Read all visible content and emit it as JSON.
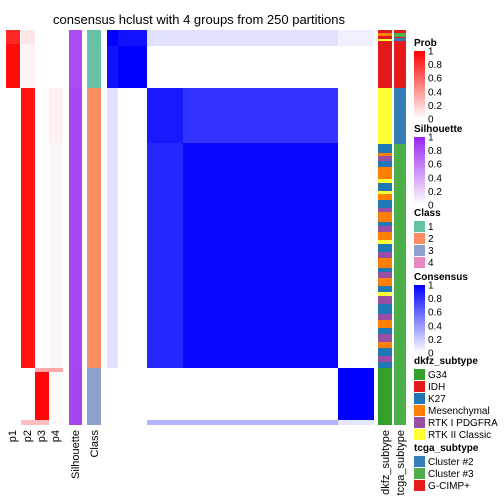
{
  "chart_data": {
    "type": "heatmap",
    "title": "consensus hclust with 4 groups from 250 partitions",
    "groups": [
      {
        "class": "1",
        "rows": 27,
        "p": [
          0.95,
          0.05,
          0.0,
          0.0
        ],
        "silhouette": 0.82
      },
      {
        "class": "2",
        "rows": 140,
        "p": [
          0.0,
          0.92,
          0.0,
          0.03
        ],
        "silhouette": 0.84
      },
      {
        "class": "3",
        "rows": 27,
        "p": [
          0.0,
          0.0,
          0.98,
          0.02
        ],
        "silhouette": 0.86
      }
    ],
    "annotation_columns": [
      "p1",
      "p2",
      "p3",
      "p4",
      "Silhouette",
      "Class"
    ],
    "side_columns": [
      "dkfz_subtype",
      "tcga_subtype"
    ],
    "consensus_blocks": [
      {
        "rows": "1",
        "cols": "1",
        "value": 0.93
      },
      {
        "rows": "2a",
        "cols": "2a",
        "value": 0.9
      },
      {
        "rows": "2a",
        "cols": "2b",
        "value": 0.8
      },
      {
        "rows": "2b",
        "cols": "2b",
        "value": 0.95
      },
      {
        "rows": "3",
        "cols": "3",
        "value": 1.0
      },
      {
        "rows": "1",
        "cols": "2",
        "value": 0.12
      },
      {
        "rows": "1",
        "cols": "3",
        "value": 0.0
      }
    ],
    "legends": {
      "prob": {
        "title": "Prob",
        "ticks": [
          "1",
          "0.8",
          "0.6",
          "0.4",
          "0.2",
          "0"
        ],
        "colors": [
          "#ff0000",
          "#ffffff"
        ]
      },
      "silhouette": {
        "title": "Silhouette",
        "ticks": [
          "1",
          "0.8",
          "0.6",
          "0.4",
          "0.2",
          "0"
        ],
        "colors": [
          "#9a24f0",
          "#ffffff"
        ]
      },
      "class": {
        "title": "Class",
        "items": [
          {
            "label": "1",
            "color": "#66c2a5"
          },
          {
            "label": "2",
            "color": "#fc8d62"
          },
          {
            "label": "3",
            "color": "#8da0cb"
          },
          {
            "label": "4",
            "color": "#e78ac3"
          }
        ]
      },
      "consensus": {
        "title": "Consensus",
        "ticks": [
          "1",
          "0.8",
          "0.6",
          "0.4",
          "0.2",
          "0"
        ],
        "colors": [
          "#0000ff",
          "#ffffff"
        ]
      },
      "dkfz": {
        "title": "dkfz_subtype",
        "items": [
          {
            "label": "G34",
            "color": "#33a02c"
          },
          {
            "label": "IDH",
            "color": "#e31a1c"
          },
          {
            "label": "K27",
            "color": "#1f78b4"
          },
          {
            "label": "Mesenchymal",
            "color": "#ff7f00"
          },
          {
            "label": "RTK I PDGFRA",
            "color": "#984ea3"
          },
          {
            "label": "RTK II Classic",
            "color": "#ffff33"
          }
        ]
      },
      "tcga": {
        "title": "tcga_subtype",
        "items": [
          {
            "label": "Cluster #2",
            "color": "#377eb8"
          },
          {
            "label": "Cluster #3",
            "color": "#4daf4a"
          },
          {
            "label": "G-CIMP+",
            "color": "#e41a1c"
          }
        ]
      }
    }
  }
}
